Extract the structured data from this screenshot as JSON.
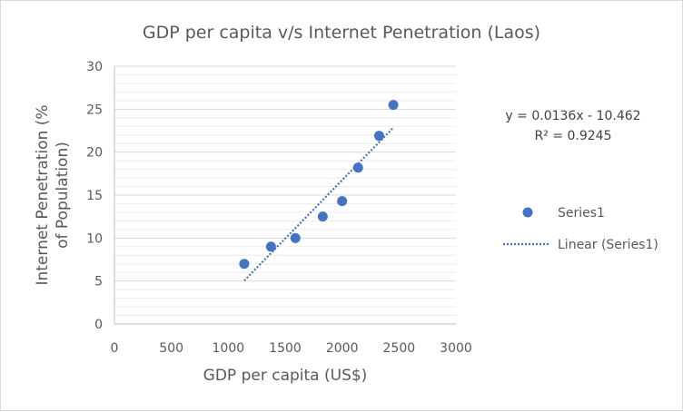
{
  "chart_data": {
    "type": "scatter",
    "title": "GDP per capita v/s Internet Penetration (Laos)",
    "xlabel": "GDP per capita (US$)",
    "ylabel": "Internet Penetration (% of Population)",
    "xlim": [
      0,
      3000
    ],
    "ylim": [
      0,
      30
    ],
    "x_ticks": [
      0,
      500,
      1000,
      1500,
      2000,
      2500,
      3000
    ],
    "y_ticks": [
      0,
      5,
      10,
      15,
      20,
      25,
      30
    ],
    "grid": true,
    "series": [
      {
        "name": "Series1",
        "color": "#4472c4",
        "points": [
          {
            "x": 1140,
            "y": 7.0
          },
          {
            "x": 1375,
            "y": 9.0
          },
          {
            "x": 1590,
            "y": 10.0
          },
          {
            "x": 1830,
            "y": 12.5
          },
          {
            "x": 2000,
            "y": 14.3
          },
          {
            "x": 2140,
            "y": 18.2
          },
          {
            "x": 2325,
            "y": 21.9
          },
          {
            "x": 2450,
            "y": 25.5
          }
        ]
      }
    ],
    "trendline": {
      "name": "Linear (Series1)",
      "type": "linear",
      "slope": 0.0136,
      "intercept": -10.462,
      "x_range": [
        1140,
        2450
      ],
      "color": "#4472c4",
      "equation_label": "y = 0.0136x - 10.462",
      "r2_label": "R² = 0.9245"
    },
    "legend": {
      "position": "right",
      "entries": [
        "Series1",
        "Linear (Series1)"
      ]
    }
  }
}
